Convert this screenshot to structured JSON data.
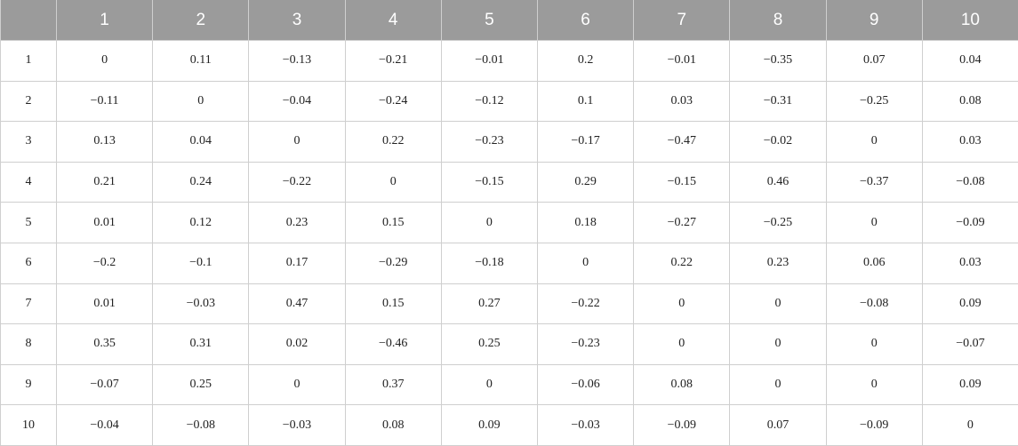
{
  "table": {
    "columns": [
      "1",
      "2",
      "3",
      "4",
      "5",
      "6",
      "7",
      "8",
      "9",
      "10"
    ],
    "rows": [
      {
        "label": "1",
        "cells": [
          "0",
          "0.11",
          "−0.13",
          "−0.21",
          "−0.01",
          "0.2",
          "−0.01",
          "−0.35",
          "0.07",
          "0.04"
        ]
      },
      {
        "label": "2",
        "cells": [
          "−0.11",
          "0",
          "−0.04",
          "−0.24",
          "−0.12",
          "0.1",
          "0.03",
          "−0.31",
          "−0.25",
          "0.08"
        ]
      },
      {
        "label": "3",
        "cells": [
          "0.13",
          "0.04",
          "0",
          "0.22",
          "−0.23",
          "−0.17",
          "−0.47",
          "−0.02",
          "0",
          "0.03"
        ]
      },
      {
        "label": "4",
        "cells": [
          "0.21",
          "0.24",
          "−0.22",
          "0",
          "−0.15",
          "0.29",
          "−0.15",
          "0.46",
          "−0.37",
          "−0.08"
        ]
      },
      {
        "label": "5",
        "cells": [
          "0.01",
          "0.12",
          "0.23",
          "0.15",
          "0",
          "0.18",
          "−0.27",
          "−0.25",
          "0",
          "−0.09"
        ]
      },
      {
        "label": "6",
        "cells": [
          "−0.2",
          "−0.1",
          "0.17",
          "−0.29",
          "−0.18",
          "0",
          "0.22",
          "0.23",
          "0.06",
          "0.03"
        ]
      },
      {
        "label": "7",
        "cells": [
          "0.01",
          "−0.03",
          "0.47",
          "0.15",
          "0.27",
          "−0.22",
          "0",
          "0",
          "−0.08",
          "0.09"
        ]
      },
      {
        "label": "8",
        "cells": [
          "0.35",
          "0.31",
          "0.02",
          "−0.46",
          "0.25",
          "−0.23",
          "0",
          "0",
          "0",
          "−0.07"
        ]
      },
      {
        "label": "9",
        "cells": [
          "−0.07",
          "0.25",
          "0",
          "0.37",
          "0",
          "−0.06",
          "0.08",
          "0",
          "0",
          "0.09"
        ]
      },
      {
        "label": "10",
        "cells": [
          "−0.04",
          "−0.08",
          "−0.03",
          "0.08",
          "0.09",
          "−0.03",
          "−0.09",
          "0.07",
          "−0.09",
          "0"
        ]
      }
    ]
  }
}
